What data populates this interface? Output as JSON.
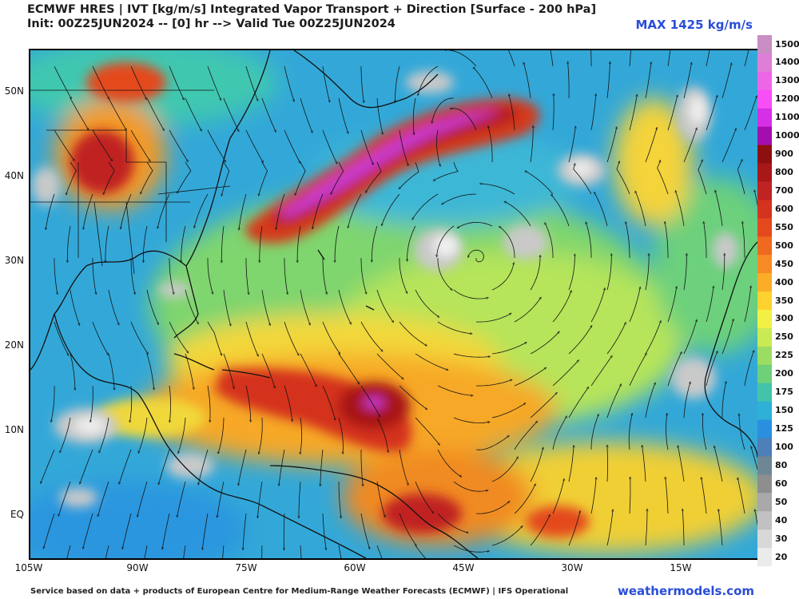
{
  "header": {
    "title_line1": "ECMWF HRES | IVT [kg/m/s] Integrated Vapor Transport + Direction [Surface - 200 hPa]",
    "title_line2": "Init: 00Z25JUN2024 -- [0] hr --> Valid Tue 00Z25JUN2024",
    "max_label": "MAX 1425 kg/m/s"
  },
  "axes": {
    "lat_labels": [
      "50N",
      "40N",
      "30N",
      "20N",
      "10N",
      "EQ"
    ],
    "lon_labels": [
      "105W",
      "90W",
      "75W",
      "60W",
      "45W",
      "30W",
      "15W"
    ]
  },
  "colorbar": {
    "levels": [
      "1500",
      "1400",
      "1300",
      "1200",
      "1100",
      "1000",
      "900",
      "800",
      "700",
      "600",
      "550",
      "500",
      "450",
      "400",
      "350",
      "300",
      "250",
      "225",
      "200",
      "175",
      "150",
      "125",
      "100",
      "80",
      "60",
      "50",
      "40",
      "30",
      "20"
    ],
    "colors": [
      "#c98ec4",
      "#dd7fd6",
      "#ee66e8",
      "#f84ef6",
      "#d530e8",
      "#a20fae",
      "#8d0f0f",
      "#a81818",
      "#c02323",
      "#d4331f",
      "#e4491e",
      "#ef6a20",
      "#f68b24",
      "#fbad28",
      "#fdd22e",
      "#f3f045",
      "#c9ea55",
      "#9bdd62",
      "#6fd07a",
      "#43c4aa",
      "#2fb0d6",
      "#2b8fdf",
      "#4d7fb8",
      "#6f8794",
      "#8e8e8e",
      "#a9a9a9",
      "#c1c1c1",
      "#d8d8d8",
      "#ebebeb"
    ]
  },
  "footer": {
    "credit": "Service based on data + products of European Centre for Medium-Range Weather Forecasts (ECMWF) | IFS Operational",
    "site": "weathermodels.com"
  }
}
